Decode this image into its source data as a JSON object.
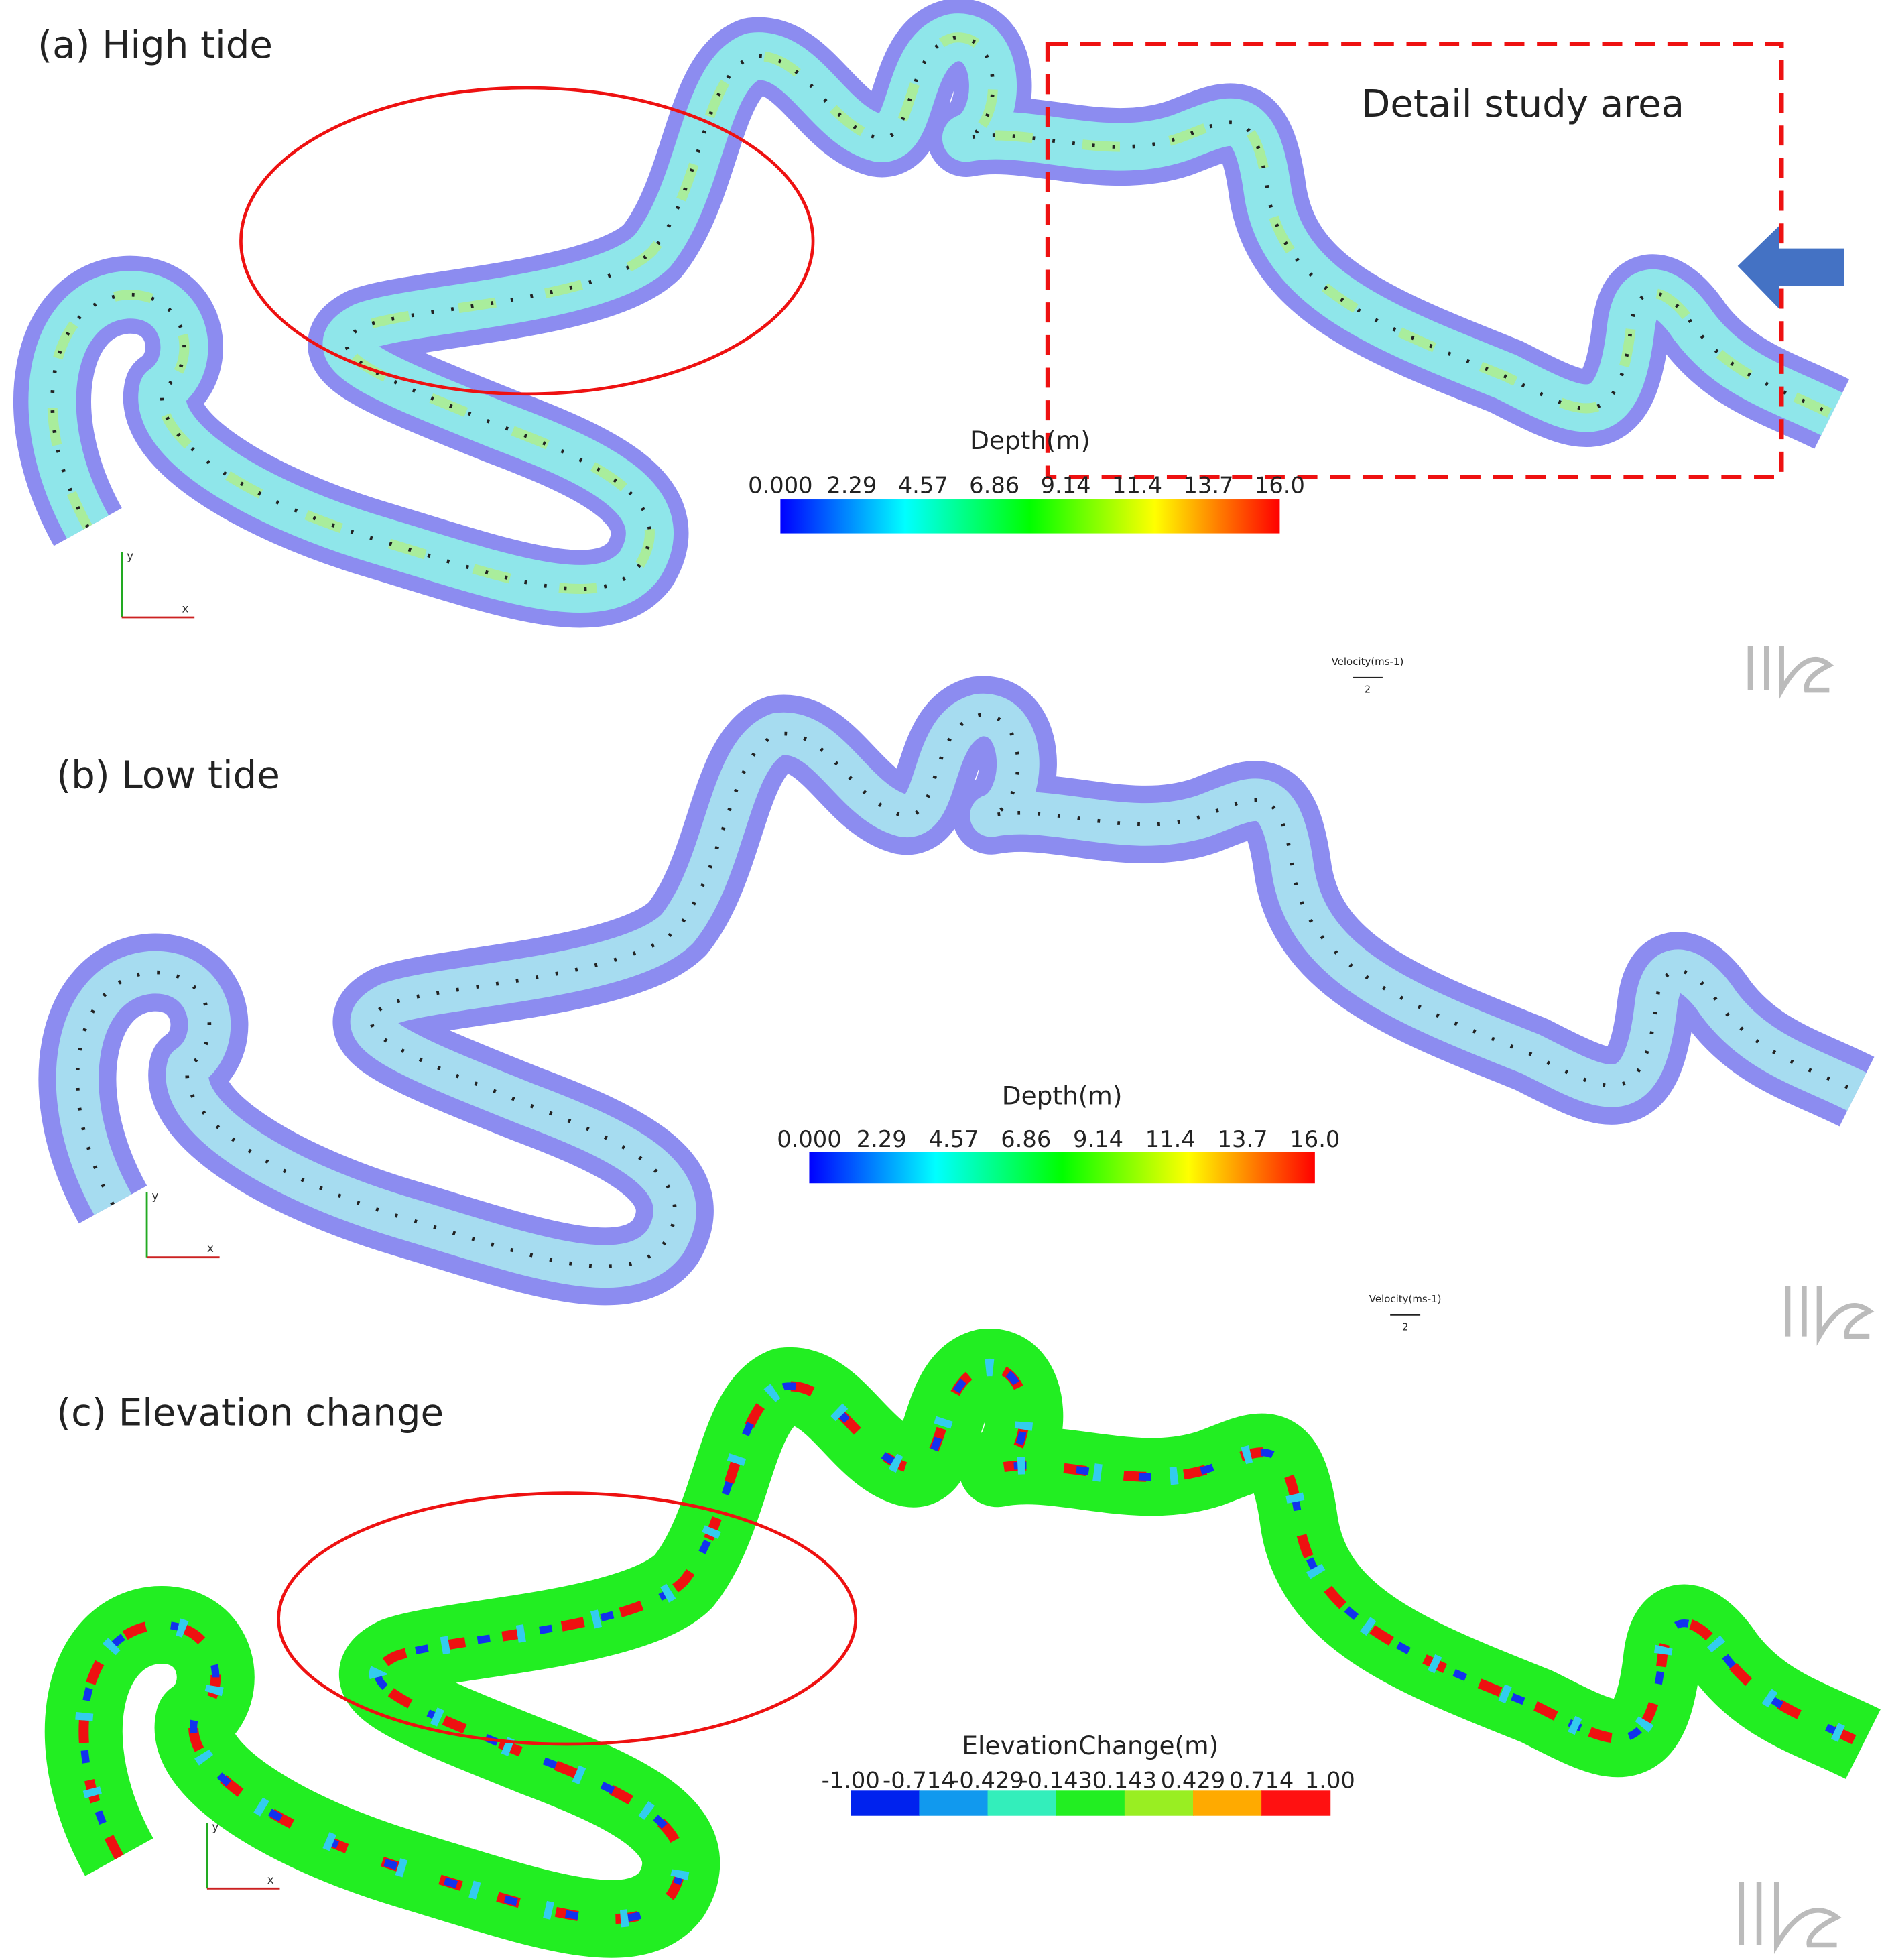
{
  "panels": [
    {
      "label": "(a) High tide",
      "annotation": "Detail study area",
      "colorbar": {
        "title": "Depth(m)",
        "ticks": [
          "0.000",
          "2.29",
          "4.57",
          "6.86",
          "9.14",
          "11.4",
          "13.7",
          "16.0"
        ]
      },
      "velocity_legend": {
        "title": "Velocity(ms-1)",
        "scale": "2"
      },
      "axes": {
        "y": "y",
        "x": "x"
      }
    },
    {
      "label": "(b) Low tide",
      "colorbar": {
        "title": "Depth(m)",
        "ticks": [
          "0.000",
          "2.29",
          "4.57",
          "6.86",
          "9.14",
          "11.4",
          "13.7",
          "16.0"
        ]
      },
      "velocity_legend": {
        "title": "Velocity(ms-1)",
        "scale": "2"
      },
      "axes": {
        "y": "y",
        "x": "x"
      }
    },
    {
      "label": "(c) Elevation change",
      "colorbar": {
        "title": "ElevationChange(m)",
        "ticks": [
          "-1.00",
          "-0.714",
          "-0.429",
          "-0.143",
          "0.143",
          "0.429",
          "0.714",
          "1.00"
        ]
      },
      "axes": {
        "y": "y",
        "x": "x"
      }
    }
  ]
}
